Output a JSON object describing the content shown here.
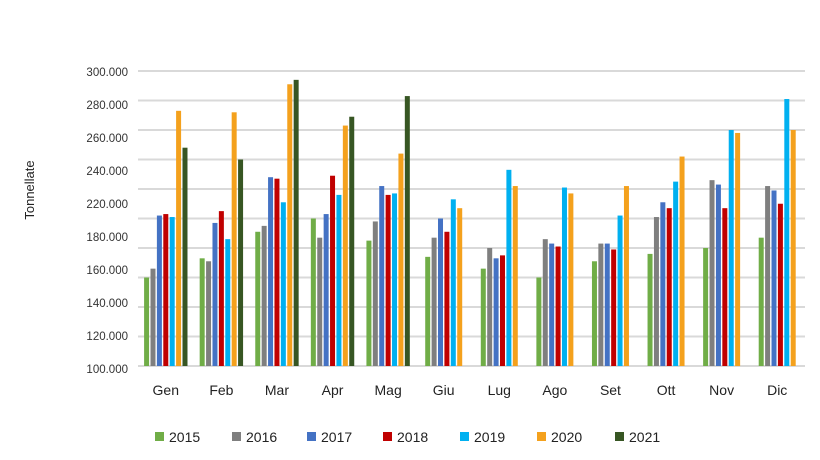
{
  "chart_data": {
    "type": "bar",
    "title": "",
    "xlabel": "",
    "ylabel": "Tonnellate",
    "ylim": [
      100000,
      300000
    ],
    "grid": true,
    "legend_position": "bottom",
    "y_tick_labels": [
      "300.000",
      "280.000",
      "260.000",
      "240.000",
      "220.000",
      "180.000",
      "160.000",
      "140.000",
      "120.000",
      "100.000"
    ],
    "categories": [
      "Gen",
      "Feb",
      "Mar",
      "Apr",
      "Mag",
      "Giu",
      "Lug",
      "Ago",
      "Set",
      "Ott",
      "Nov",
      "Dic"
    ],
    "series": [
      {
        "name": "2015",
        "color": "#70ad47",
        "values": [
          160000,
          173000,
          191000,
          200000,
          185000,
          174000,
          166000,
          160000,
          171000,
          176000,
          180000,
          187000
        ]
      },
      {
        "name": "2016",
        "color": "#7f7f7f",
        "values": [
          166000,
          171000,
          195000,
          187000,
          198000,
          187000,
          180000,
          186000,
          183000,
          201000,
          226000,
          222000
        ]
      },
      {
        "name": "2017",
        "color": "#4472c4",
        "values": [
          202000,
          197000,
          228000,
          203000,
          222000,
          200000,
          173000,
          183000,
          183000,
          211000,
          223000,
          219000
        ]
      },
      {
        "name": "2018",
        "color": "#c00000",
        "values": [
          203000,
          205000,
          227000,
          229000,
          216000,
          191000,
          175000,
          181000,
          179000,
          207000,
          207000,
          210000
        ]
      },
      {
        "name": "2019",
        "color": "#00b0f0",
        "values": [
          201000,
          186000,
          211000,
          216000,
          217000,
          213000,
          233000,
          221000,
          202000,
          225000,
          260000,
          281000
        ]
      },
      {
        "name": "2020",
        "color": "#f4a11d",
        "values": [
          273000,
          272000,
          291000,
          263000,
          244000,
          207000,
          222000,
          217000,
          222000,
          242000,
          258000,
          260000
        ]
      },
      {
        "name": "2021",
        "color": "#375623",
        "values": [
          248000,
          240000,
          294000,
          269000,
          283000,
          null,
          null,
          null,
          null,
          null,
          null,
          null
        ]
      }
    ]
  }
}
